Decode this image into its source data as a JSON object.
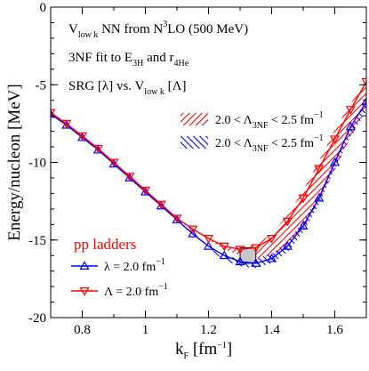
{
  "chart_data": {
    "type": "line",
    "xlim": [
      0.7,
      1.7
    ],
    "ylim": [
      -20,
      0
    ],
    "x_ticks": [
      0.8,
      1.0,
      1.2,
      1.4,
      1.6
    ],
    "x_tick_labels": [
      "0.8",
      "1",
      "1.2",
      "1.4",
      "1.6"
    ],
    "y_ticks": [
      0,
      -5,
      -10,
      -15,
      -20
    ],
    "y_tick_labels": [
      "0",
      "-5",
      "-10",
      "-15",
      "-20"
    ],
    "ylabel": "Energy/nucleon [MeV]",
    "xlabel": {
      "base": "k",
      "sub": "F",
      "unit": " [fm",
      "exp": "−1",
      "close": "]"
    },
    "annotations": [
      {
        "parts": [
          [
            "t",
            "V"
          ],
          [
            "sub",
            "low k"
          ],
          [
            "t",
            " NN  from N"
          ],
          [
            "sup",
            "3"
          ],
          [
            "t",
            "LO (500 MeV)"
          ]
        ]
      },
      {
        "parts": [
          [
            "t",
            "3NF fit to E"
          ],
          [
            "sub",
            "3H"
          ],
          [
            "t",
            " and r"
          ],
          [
            "sub",
            "4He"
          ]
        ]
      },
      {
        "parts": [
          [
            "t",
            "SRG [λ] vs. V"
          ],
          [
            "sub",
            "low k"
          ],
          [
            "t",
            " [Λ]"
          ]
        ]
      }
    ],
    "band_legend": [
      {
        "color": "#ff0000",
        "parts": [
          [
            "t",
            "2.0 < Λ"
          ],
          [
            "sub",
            "3NF"
          ],
          [
            "t",
            " < 2.5 fm"
          ],
          [
            "sup",
            "−1"
          ]
        ]
      },
      {
        "color": "#0000ff",
        "parts": [
          [
            "t",
            "2.0 < Λ"
          ],
          [
            "sub",
            "3NF"
          ],
          [
            "t",
            " < 2.5 fm"
          ],
          [
            "sup",
            "−1"
          ]
        ]
      }
    ],
    "legend_title": "pp ladders",
    "series": [
      {
        "name": "λ = 2.0 fm−1",
        "legend_parts": [
          [
            "t",
            "λ = 2.0 fm"
          ],
          [
            "sup",
            "−1"
          ]
        ],
        "color": "#0000ff",
        "marker": "triangle-up",
        "x": [
          0.7,
          0.75,
          0.8,
          0.85,
          0.9,
          0.95,
          1.0,
          1.05,
          1.1,
          1.15,
          1.2,
          1.25,
          1.3,
          1.35,
          1.4,
          1.45,
          1.5,
          1.55,
          1.6,
          1.65,
          1.7
        ],
        "y": [
          -6.9,
          -7.6,
          -8.4,
          -9.2,
          -10.1,
          -11.0,
          -11.9,
          -12.8,
          -13.7,
          -14.6,
          -15.4,
          -16.0,
          -16.4,
          -16.5,
          -16.2,
          -15.4,
          -14.1,
          -12.3,
          -10.0,
          -7.7,
          -6.1
        ]
      },
      {
        "name": "Λ = 2.0 fm−1",
        "legend_parts": [
          [
            "t",
            "Λ = 2.0 fm"
          ],
          [
            "sup",
            "−1"
          ]
        ],
        "color": "#ff0000",
        "marker": "triangle-down",
        "x": [
          0.7,
          0.75,
          0.8,
          0.85,
          0.9,
          0.95,
          1.0,
          1.05,
          1.1,
          1.15,
          1.2,
          1.25,
          1.3,
          1.35,
          1.4,
          1.45,
          1.5,
          1.55,
          1.6,
          1.65,
          1.7
        ],
        "y": [
          -6.8,
          -7.5,
          -8.3,
          -9.1,
          -10.0,
          -10.9,
          -11.8,
          -12.7,
          -13.6,
          -14.3,
          -14.9,
          -15.4,
          -15.6,
          -15.5,
          -14.9,
          -13.8,
          -12.3,
          -10.4,
          -8.5,
          -6.6,
          -4.8
        ]
      }
    ],
    "bands": [
      {
        "color": "#ff0000",
        "x": [
          1.2,
          1.25,
          1.3,
          1.35,
          1.4,
          1.45,
          1.5,
          1.55,
          1.6,
          1.65,
          1.7
        ],
        "upper": [
          -14.9,
          -15.4,
          -15.5,
          -15.3,
          -14.6,
          -13.4,
          -11.8,
          -9.9,
          -7.9,
          -6.2,
          -4.8
        ],
        "lower": [
          -15.0,
          -15.6,
          -16.0,
          -16.2,
          -16.0,
          -15.4,
          -14.3,
          -12.5,
          -10.5,
          -8.4,
          -6.5
        ]
      },
      {
        "color": "#0000ff",
        "x": [
          1.2,
          1.25,
          1.3,
          1.35,
          1.4,
          1.45,
          1.5,
          1.55,
          1.6,
          1.65,
          1.7
        ],
        "upper": [
          -15.5,
          -16.0,
          -16.2,
          -16.2,
          -15.9,
          -15.1,
          -13.8,
          -12.1,
          -9.8,
          -7.8,
          -6.2
        ],
        "lower": [
          -15.6,
          -16.3,
          -16.7,
          -16.8,
          -16.5,
          -15.8,
          -14.5,
          -12.7,
          -10.4,
          -8.3,
          -6.7
        ]
      }
    ],
    "empirical_box": {
      "x": [
        1.3,
        1.35
      ],
      "y": [
        -16.5,
        -15.5
      ],
      "fill": "#c8c8c8"
    }
  }
}
